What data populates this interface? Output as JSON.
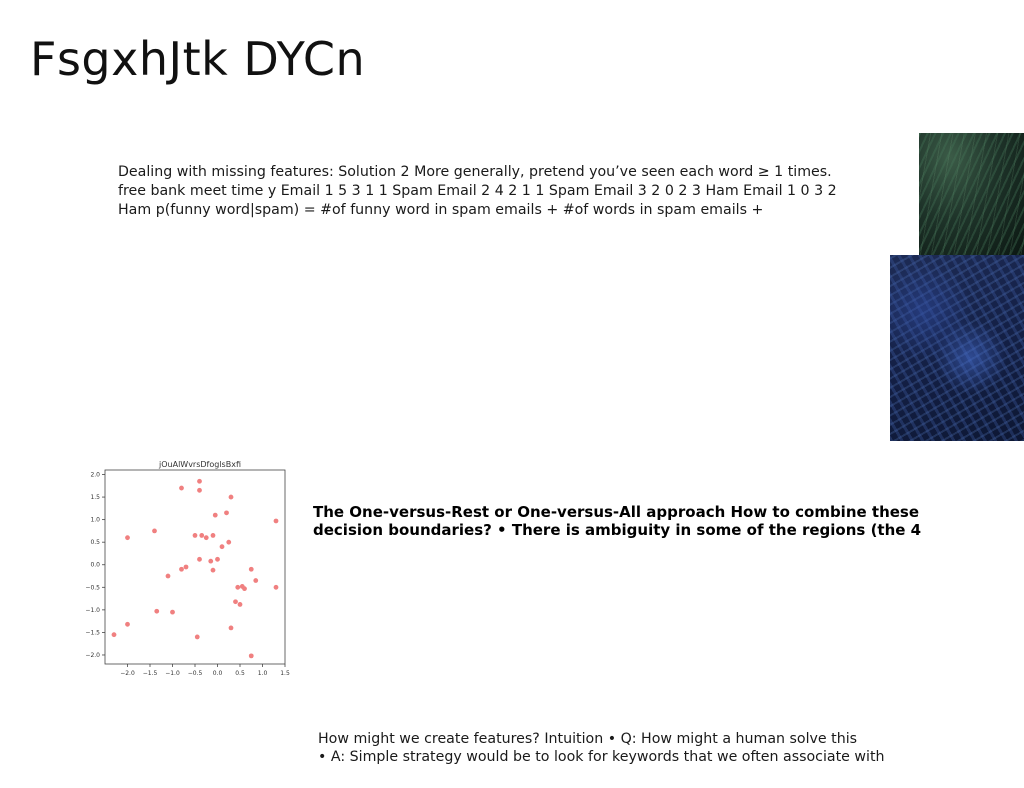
{
  "slide": {
    "title": "FsgxhJtk DYCn",
    "paragraph1": "Dealing with missing features: Solution 2 More generally, pretend you’ve seen each word  ≥ 1 times. free bank meet time y Email 1 5 3 1 1 Spam Email 2 4 2 1 1 Spam Email 3 2 0 2 3 Ham Email 1 0 3 2 Ham p(funny word|spam) = #of funny word in spam emails +  #of words in spam emails + ",
    "paragraph2": "The One-versus-Rest or One-versus-All approach How to combine these decision boundaries? • There is ambiguity in some of the regions (the 4",
    "paragraph3_line1": "How might we create features? Intuition • Q: How might a human solve this",
    "paragraph3_line2": "• A: Simple strategy would be to look for keywords that we often associate with"
  },
  "images": {
    "top_right": "green-foliage-photo",
    "bottom_right": "blue-texture-photo"
  },
  "chart_data": {
    "type": "scatter",
    "title": "jOuAlWvrsDfoglsBxfi",
    "xlabel": "",
    "ylabel": "",
    "xlim": [
      -2.5,
      1.5
    ],
    "ylim": [
      -2.2,
      2.1
    ],
    "xticks": [
      -2.0,
      -1.5,
      -1.0,
      -0.5,
      0.0,
      0.5,
      1.0,
      1.5
    ],
    "yticks": [
      2.0,
      1.5,
      1.0,
      0.5,
      0.0,
      -0.5,
      -1.0,
      -1.5,
      -2.0
    ],
    "xtick_labels": [
      "−2.0",
      "−1.5",
      "−1.0",
      "−0.5",
      "0.0",
      "0.5",
      "1.0",
      "1.5"
    ],
    "ytick_labels": [
      "2.0",
      "1.5",
      "1.0",
      "0.5",
      "0.0",
      "−0.5",
      "−1.0",
      "−1.5",
      "−2.0"
    ],
    "color": "#f08080",
    "points": [
      [
        -0.4,
        1.85
      ],
      [
        -0.4,
        1.65
      ],
      [
        -0.8,
        1.7
      ],
      [
        0.3,
        1.5
      ],
      [
        0.2,
        1.15
      ],
      [
        -0.05,
        1.1
      ],
      [
        1.3,
        0.97
      ],
      [
        -1.4,
        0.75
      ],
      [
        -2.0,
        0.6
      ],
      [
        -0.35,
        0.65
      ],
      [
        -0.1,
        0.65
      ],
      [
        -0.5,
        0.65
      ],
      [
        -0.25,
        0.6
      ],
      [
        0.25,
        0.5
      ],
      [
        0.1,
        0.4
      ],
      [
        -0.4,
        0.12
      ],
      [
        -0.15,
        0.08
      ],
      [
        0.0,
        0.12
      ],
      [
        -0.7,
        -0.05
      ],
      [
        -0.8,
        -0.1
      ],
      [
        -0.1,
        -0.12
      ],
      [
        -1.1,
        -0.25
      ],
      [
        0.75,
        -0.1
      ],
      [
        0.85,
        -0.35
      ],
      [
        0.45,
        -0.5
      ],
      [
        0.55,
        -0.48
      ],
      [
        0.6,
        -0.53
      ],
      [
        1.3,
        -0.5
      ],
      [
        0.4,
        -0.82
      ],
      [
        0.5,
        -0.88
      ],
      [
        -1.0,
        -1.05
      ],
      [
        -1.35,
        -1.03
      ],
      [
        -2.0,
        -1.32
      ],
      [
        0.3,
        -1.4
      ],
      [
        -2.3,
        -1.55
      ],
      [
        -0.45,
        -1.6
      ],
      [
        0.75,
        -2.02
      ]
    ]
  }
}
